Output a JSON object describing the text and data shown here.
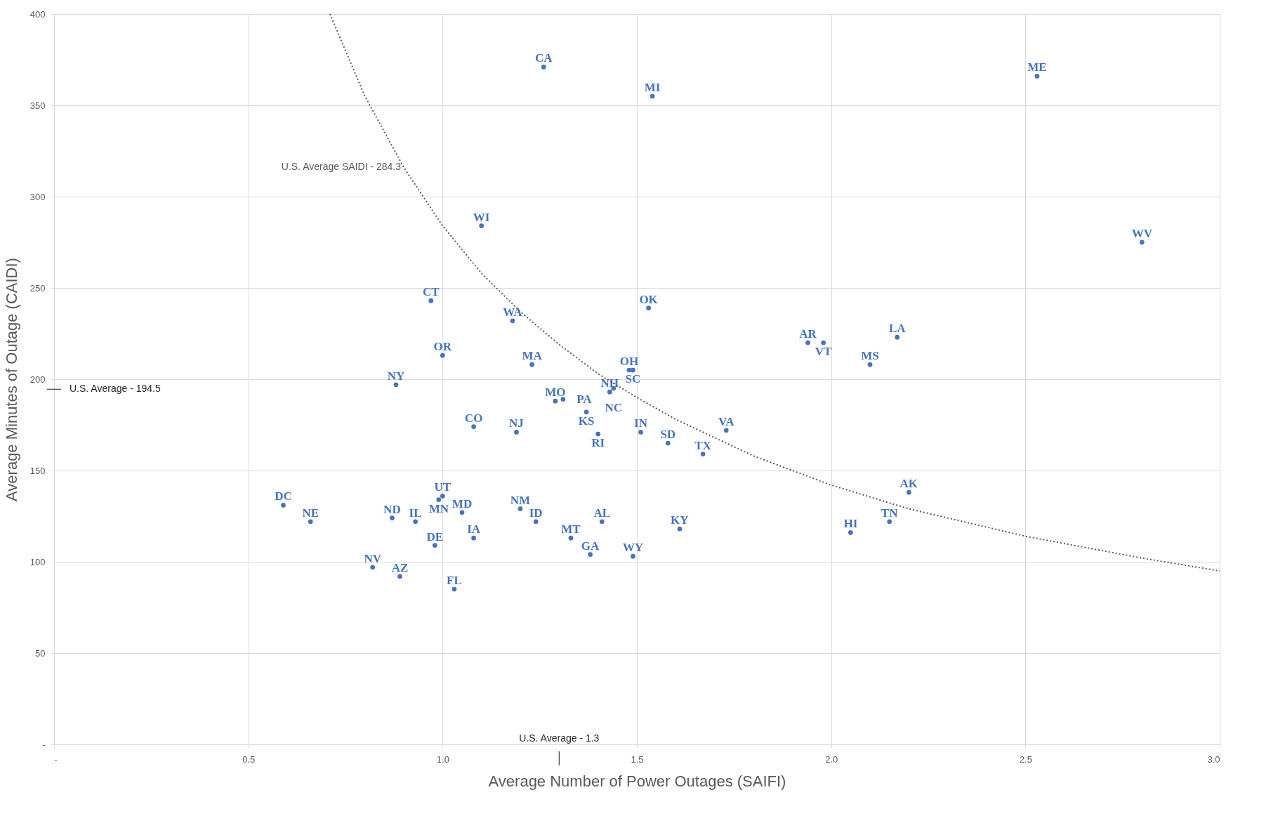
{
  "chart_data": {
    "type": "scatter",
    "xlabel": "Average Number of Power Outages (SAIFI)",
    "ylabel": "Average Minutes of Outage (CAIDI)",
    "xlim": [
      0,
      3
    ],
    "ylim": [
      0,
      400
    ],
    "xticks": [
      {
        "value": 0,
        "label": "-"
      },
      0.5,
      {
        "value": 1,
        "label": "1.0"
      },
      1.5,
      {
        "value": 2,
        "label": "2.0"
      },
      2.5,
      {
        "value": 3,
        "label": "3.0"
      }
    ],
    "yticks": [
      {
        "value": 0,
        "label": "-"
      },
      50,
      100,
      150,
      200,
      250,
      300,
      350,
      400
    ],
    "grid": true,
    "series": [
      {
        "color": "#4472c4",
        "marker": "circle",
        "value_labels": [
          "CA",
          "MI",
          "ME",
          "WV",
          "WI",
          "CT",
          "OK",
          "WA",
          "AR",
          "VT",
          "LA",
          "OR",
          "MA",
          "MS",
          "OH",
          "SC",
          "NY",
          "NH",
          "NC",
          "MO",
          "PA",
          "KS",
          "CO",
          "NJ",
          "RI",
          "IN",
          "VA",
          "SD",
          "TX",
          "AK",
          "UT",
          "MN",
          "DC",
          "MD",
          "NM",
          "ND",
          "NE",
          "IL",
          "ID",
          "AL",
          "TN",
          "KY",
          "HI",
          "IA",
          "MT",
          "DE",
          "GA",
          "WY",
          "NV",
          "AZ",
          "FL"
        ],
        "x": [
          1.26,
          1.54,
          2.53,
          2.8,
          1.1,
          0.97,
          1.53,
          1.18,
          1.94,
          1.98,
          2.17,
          1.0,
          1.23,
          2.1,
          1.48,
          1.49,
          0.88,
          1.43,
          1.44,
          1.29,
          1.31,
          1.37,
          1.08,
          1.19,
          1.4,
          1.51,
          1.73,
          1.58,
          1.67,
          2.2,
          1.0,
          0.99,
          0.59,
          1.05,
          1.2,
          0.87,
          0.66,
          0.93,
          1.24,
          1.41,
          2.15,
          1.61,
          2.05,
          1.08,
          1.33,
          0.98,
          1.38,
          1.49,
          0.82,
          0.89,
          1.03
        ],
        "values": [
          371,
          355,
          366,
          275,
          284,
          243,
          239,
          232,
          220,
          220,
          223,
          213,
          208,
          208,
          205,
          205,
          197,
          193,
          195,
          188,
          189,
          182,
          174,
          171,
          170,
          171,
          172,
          165,
          159,
          138,
          136,
          134,
          131,
          127,
          129,
          124,
          122,
          122,
          122,
          122,
          122,
          118,
          116,
          113,
          113,
          109,
          104,
          103,
          97,
          92,
          85
        ]
      },
      {
        "type": "line",
        "name": "U.S. Average SAIDI - 284.3",
        "color": "#595959",
        "line_style": "dotted",
        "x": [
          0.71,
          0.8,
          0.9,
          1.0,
          1.1,
          1.2,
          1.3,
          1.4,
          1.5,
          1.6,
          1.8,
          2.0,
          2.2,
          2.5,
          2.8,
          3.0
        ],
        "values": [
          400,
          355,
          316,
          284,
          258,
          237,
          219,
          203,
          190,
          178,
          158,
          142,
          129,
          114,
          102,
          95
        ]
      }
    ],
    "ref_lines": [
      {
        "axis": "y",
        "value": 194.5,
        "label": "U.S. Average - 194.5"
      },
      {
        "axis": "x",
        "value": 1.3,
        "label": "U.S. Average - 1.3"
      }
    ]
  }
}
